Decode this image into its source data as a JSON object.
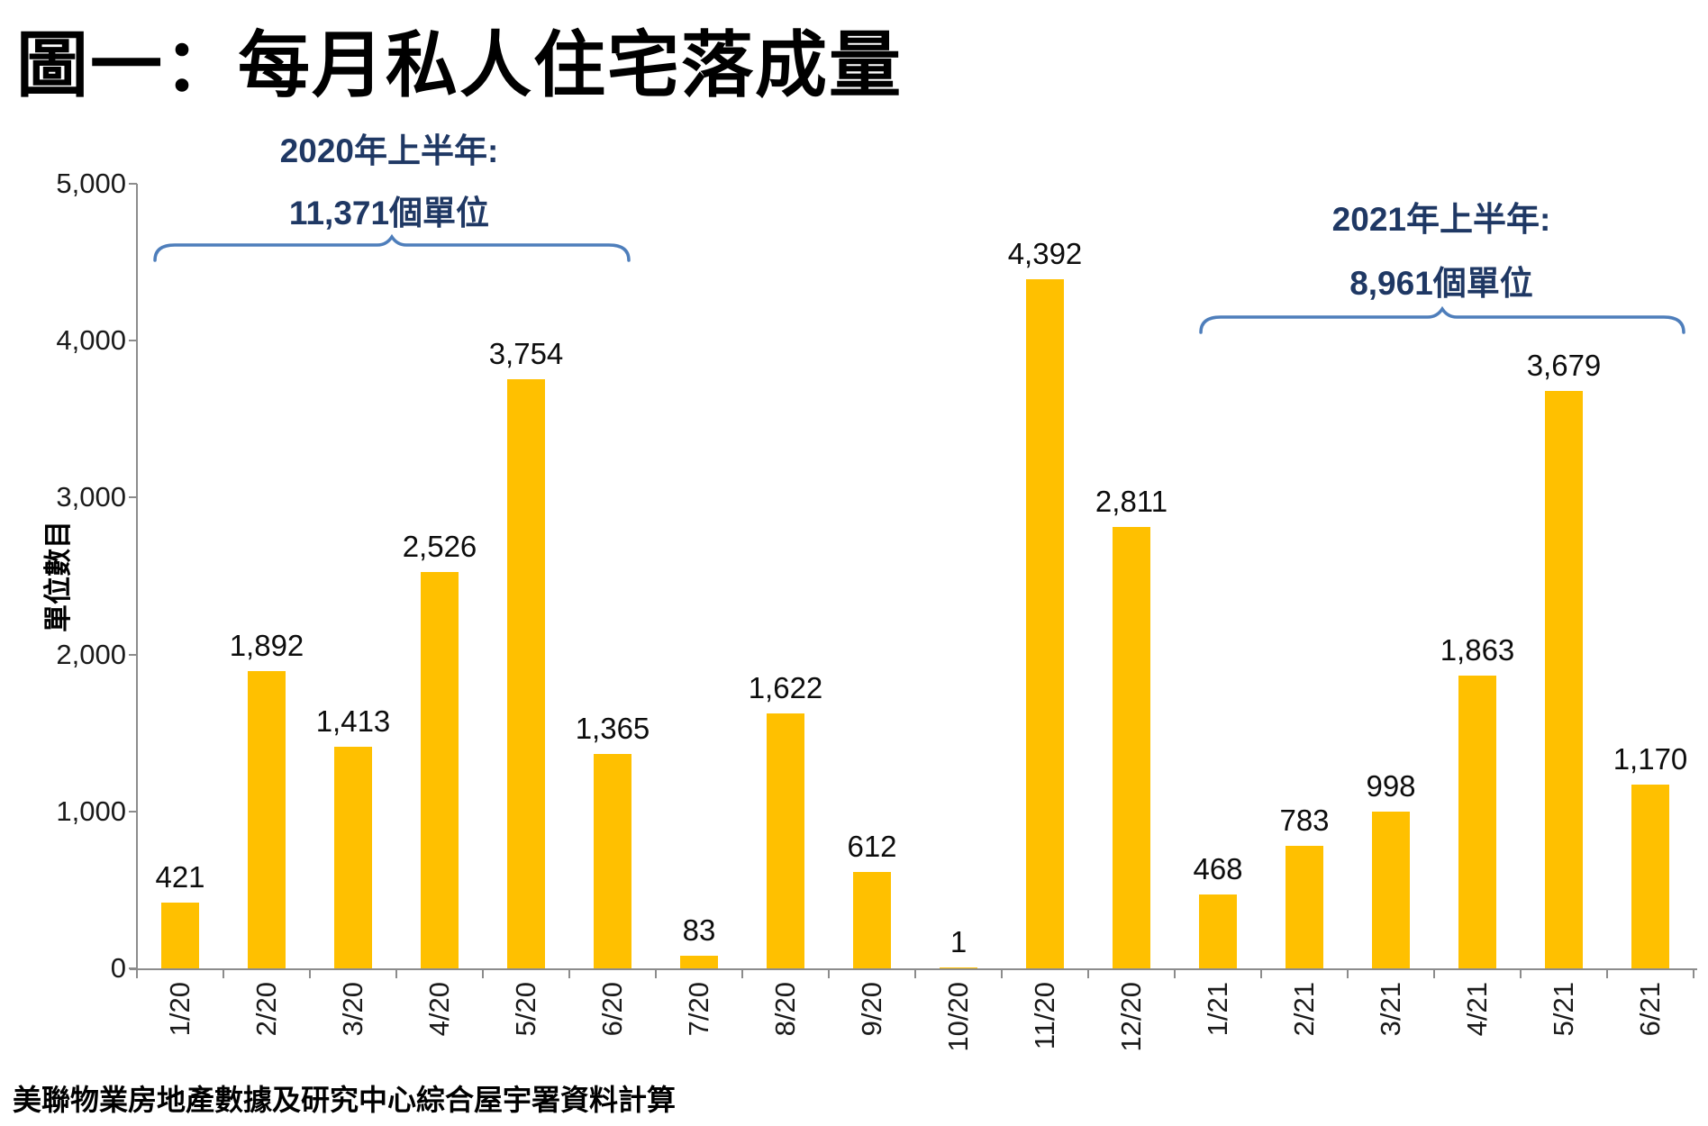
{
  "title": "圖一：每月私人住宅落成量",
  "footer": "美聯物業房地產數據及研究中心綜合屋宇署資料計算",
  "annotations": {
    "h1_2020": {
      "line1": "2020年上半年:",
      "line2": "11,371個單位"
    },
    "h1_2021": {
      "line1": "2021年上半年:",
      "line2": "8,961個單位"
    }
  },
  "colors": {
    "bar": "#FFC000",
    "brace": "#4E7EBB",
    "annotation_text": "#1F3864",
    "axis": "#8C8C8C",
    "label_text": "#0D0D0D"
  },
  "chart_data": {
    "type": "bar",
    "title": "圖一：每月私人住宅落成量",
    "xlabel": "",
    "ylabel": "單位數目",
    "categories": [
      "1/20",
      "2/20",
      "3/20",
      "4/20",
      "5/20",
      "6/20",
      "7/20",
      "8/20",
      "9/20",
      "10/20",
      "11/20",
      "12/20",
      "1/21",
      "2/21",
      "3/21",
      "4/21",
      "5/21",
      "6/21"
    ],
    "values": [
      421,
      1892,
      1413,
      2526,
      3754,
      1365,
      83,
      1622,
      612,
      1,
      4392,
      2811,
      468,
      783,
      998,
      1863,
      3679,
      1170
    ],
    "value_labels": [
      "421",
      "1,892",
      "1,413",
      "2,526",
      "3,754",
      "1,365",
      "83",
      "1,622",
      "612",
      "1",
      "4,392",
      "2,811",
      "468",
      "783",
      "998",
      "1,863",
      "3,679",
      "1,170"
    ],
    "ylim": [
      0,
      5000
    ],
    "y_ticks": [
      "0",
      "1,000",
      "2,000",
      "3,000",
      "4,000",
      "5,000"
    ],
    "grid": false,
    "legend": false,
    "annotation_totals": {
      "h1_2020_units": 11371,
      "h1_2021_units": 8961
    }
  }
}
